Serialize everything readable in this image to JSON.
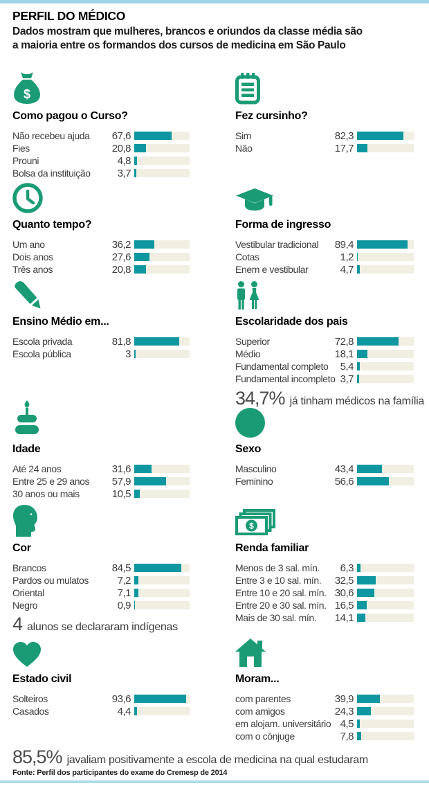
{
  "header": {
    "title": "PERFIL DO MÉDICO",
    "subtitle_line1": "Dados mostram que mulheres, brancos e oriundos da classe média são",
    "subtitle_line2": "a maioria entre os formandos dos cursos de medicina em São Paulo"
  },
  "colors": {
    "icon_green": "#1a9b76",
    "bar_teal": "#0e97a0",
    "bar_track_cream": "#f1efe1",
    "rule_light_blue": "#9fd3e6"
  },
  "chart_data": [
    {
      "type": "bar",
      "id": "como-pagou-curso",
      "icon": "money-bag-icon",
      "title": "Como pagou o Curso?",
      "xlim": [
        0,
        100
      ],
      "rows": [
        {
          "label": "Não recebeu ajuda",
          "display": "67,6",
          "value": 67.6
        },
        {
          "label": "Fies",
          "display": "20,8",
          "value": 20.8
        },
        {
          "label": "Prouni",
          "display": "4,8",
          "value": 4.8
        },
        {
          "label": "Bolsa da instituição",
          "display": "3,7",
          "value": 3.7
        }
      ]
    },
    {
      "type": "bar",
      "id": "quanto-tempo",
      "icon": "clock-icon",
      "title": "Quanto tempo?",
      "xlim": [
        0,
        100
      ],
      "rows": [
        {
          "label": "Um ano",
          "display": "36,2",
          "value": 36.2
        },
        {
          "label": "Dois anos",
          "display": "27,6",
          "value": 27.6
        },
        {
          "label": "Três anos",
          "display": "20,8",
          "value": 20.8
        }
      ]
    },
    {
      "type": "bar",
      "id": "ensino-medio",
      "icon": "pencil-icon",
      "title": "Ensino Médio em...",
      "xlim": [
        0,
        100
      ],
      "rows": [
        {
          "label": "Escola privada",
          "display": "81,8",
          "value": 81.8
        },
        {
          "label": "Escola pública",
          "display": "3",
          "value": 3
        }
      ]
    },
    {
      "type": "bar",
      "id": "idade",
      "icon": "birthday-cake-icon",
      "title": "Idade",
      "xlim": [
        0,
        100
      ],
      "rows": [
        {
          "label": "Até 24 anos",
          "display": "31,6",
          "value": 31.6
        },
        {
          "label": "Entre 25 e 29 anos",
          "display": "57,9",
          "value": 57.9
        },
        {
          "label": "30 anos ou mais",
          "display": "10,5",
          "value": 10.5
        }
      ]
    },
    {
      "type": "bar",
      "id": "cor",
      "icon": "head-profile-icon",
      "title": "Cor",
      "xlim": [
        0,
        100
      ],
      "rows": [
        {
          "label": "Brancos",
          "display": "84,5",
          "value": 84.5
        },
        {
          "label": "Pardos ou mulatos",
          "display": "7,2",
          "value": 7.2
        },
        {
          "label": "Oriental",
          "display": "7,1",
          "value": 7.1
        },
        {
          "label": "Negro",
          "display": "0,9",
          "value": 0.9
        }
      ]
    },
    {
      "type": "bar",
      "id": "estado-civil",
      "icon": "heart-icon",
      "title": "Estado civil",
      "xlim": [
        0,
        100
      ],
      "rows": [
        {
          "label": "Solteiros",
          "display": "93,6",
          "value": 93.6
        },
        {
          "label": "Casados",
          "display": "4,4",
          "value": 4.4
        }
      ]
    },
    {
      "type": "bar",
      "id": "fez-cursinho",
      "icon": "notepad-icon",
      "title": "Fez cursinho?",
      "xlim": [
        0,
        100
      ],
      "rows": [
        {
          "label": "Sim",
          "display": "82,3",
          "value": 82.3
        },
        {
          "label": "Não",
          "display": "17,7",
          "value": 17.7
        }
      ]
    },
    {
      "type": "bar",
      "id": "forma-de-ingresso",
      "icon": "graduation-cap-icon",
      "title": "Forma de ingresso",
      "xlim": [
        0,
        100
      ],
      "rows": [
        {
          "label": "Vestibular tradicional",
          "display": "89,4",
          "value": 89.4
        },
        {
          "label": "Cotas",
          "display": "1,2",
          "value": 1.2
        },
        {
          "label": "Enem e vestibular",
          "display": "4,7",
          "value": 4.7
        }
      ]
    },
    {
      "type": "bar",
      "id": "escolaridade-dos-pais",
      "icon": "man-woman-icon",
      "title": "Escolaridade dos pais",
      "xlim": [
        0,
        100
      ],
      "rows": [
        {
          "label": "Superior",
          "display": "72,8",
          "value": 72.8
        },
        {
          "label": "Médio",
          "display": "18,1",
          "value": 18.1
        },
        {
          "label": "Fundamental completo",
          "display": "5,4",
          "value": 5.4
        },
        {
          "label": "Fundamental incompleto",
          "display": "3,7",
          "value": 3.7
        }
      ]
    },
    {
      "type": "bar",
      "id": "sexo",
      "icon": "circle-icon",
      "title": "Sexo",
      "xlim": [
        0,
        100
      ],
      "rows": [
        {
          "label": "Masculino",
          "display": "43,4",
          "value": 43.4
        },
        {
          "label": "Feminino",
          "display": "56,6",
          "value": 56.6
        }
      ]
    },
    {
      "type": "bar",
      "id": "renda-familiar",
      "icon": "money-bills-icon",
      "title": "Renda familiar",
      "xlim": [
        0,
        100
      ],
      "rows": [
        {
          "label": "Menos de 3 sal. mín.",
          "display": "6,3",
          "value": 6.3
        },
        {
          "label": "Entre 3 e 10 sal. mín.",
          "display": "32,5",
          "value": 32.5
        },
        {
          "label": "Entre 10 e 20 sal. mín.",
          "display": "30,6",
          "value": 30.6
        },
        {
          "label": "Entre 20 e 30 sal. mín.",
          "display": "16,5",
          "value": 16.5
        },
        {
          "label": "Mais de 30 sal. mín.",
          "display": "14,1",
          "value": 14.1
        }
      ]
    },
    {
      "type": "bar",
      "id": "moram",
      "icon": "house-icon",
      "title": "Moram...",
      "xlim": [
        0,
        100
      ],
      "rows": [
        {
          "label": "com parentes",
          "display": "39,9",
          "value": 39.9
        },
        {
          "label": "com amigos",
          "display": "24,3",
          "value": 24.3
        },
        {
          "label": "em alojam. universitário",
          "display": "4,5",
          "value": 4.5
        },
        {
          "label": "com o cônjuge",
          "display": "7,8",
          "value": 7.8
        }
      ]
    }
  ],
  "notes": {
    "medicos_familia": {
      "value": "34,7%",
      "text": "já tinham médicos na família"
    },
    "indigenas": {
      "value": "4",
      "text": "alunos se declararam indígenas"
    },
    "avaliacao": {
      "value": "85,5%",
      "text": "javaliam positivamente a escola de medicina na qual estudaram"
    }
  },
  "source": "Fonte: Perfil dos participantes do exame do Cremesp de 2014"
}
